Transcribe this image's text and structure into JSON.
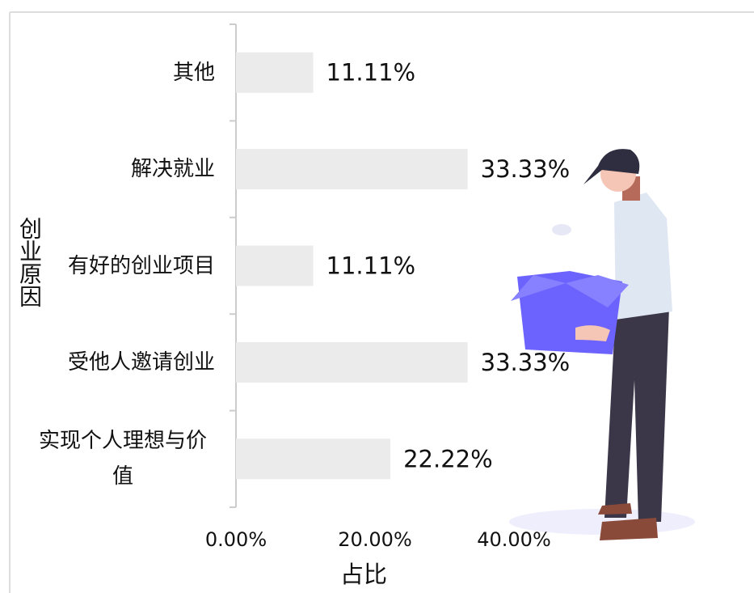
{
  "chart_data": {
    "type": "bar",
    "orientation": "horizontal",
    "x_label": "占比",
    "y_label": "创业原因",
    "categories": [
      "其他",
      "解决就业",
      "有好的创业项目",
      "受他人邀请创业",
      "实现个人理想与价值"
    ],
    "values": [
      11.11,
      33.33,
      11.11,
      33.33,
      22.22
    ],
    "value_labels": [
      "11.11%",
      "33.33%",
      "11.11%",
      "33.33%",
      "22.22%"
    ],
    "color": "#ebebeb",
    "xlim": [
      0,
      40
    ],
    "xticks": [
      {
        "value": 0,
        "label": "0.00%"
      },
      {
        "value": 20,
        "label": "20.00%"
      },
      {
        "value": 40,
        "label": "40.00%"
      }
    ],
    "grid": false
  }
}
